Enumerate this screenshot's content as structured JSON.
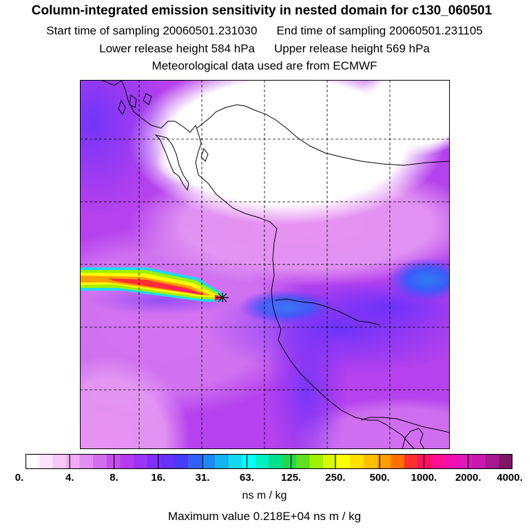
{
  "title": "Column-integrated emission sensitivity in nested domain for c130_060501",
  "start_label": "Start time of sampling 20060501.231030",
  "end_label": "End time of sampling 20060501.231105",
  "lower_label": "Lower release height  584 hPa",
  "upper_label": "Upper release height  569 hPa",
  "met_label": "Meteorological data used are from ECMWF",
  "colorbar": {
    "colors": [
      "#ffffff",
      "#fbe3fb",
      "#f6c8f6",
      "#f1acf4",
      "#e28ef0",
      "#d36eee",
      "#c450ec",
      "#b43bf0",
      "#9a35f3",
      "#7f2ff7",
      "#6530fa",
      "#4a3bf8",
      "#3460f8",
      "#1e88f5",
      "#16b2f2",
      "#15d8f0",
      "#00ffff",
      "#00f0c0",
      "#00e08a",
      "#20d850",
      "#60e020",
      "#a0f000",
      "#d8f800",
      "#ffff00",
      "#ffe000",
      "#ffc000",
      "#ffa000",
      "#ff7000",
      "#ff3030",
      "#ff1060",
      "#ff1090",
      "#f010b0",
      "#e018b8",
      "#c818b0",
      "#a81890",
      "#801468"
    ],
    "tick_labels": [
      "0.",
      "4.",
      "8.",
      "16.",
      "31.",
      "63.",
      "125.",
      "250.",
      "500.",
      "1000.",
      "2000.",
      "4000."
    ],
    "units": "ns m / kg"
  },
  "max_value_label": "Maximum value  0.218E+04 ns m / kg"
}
